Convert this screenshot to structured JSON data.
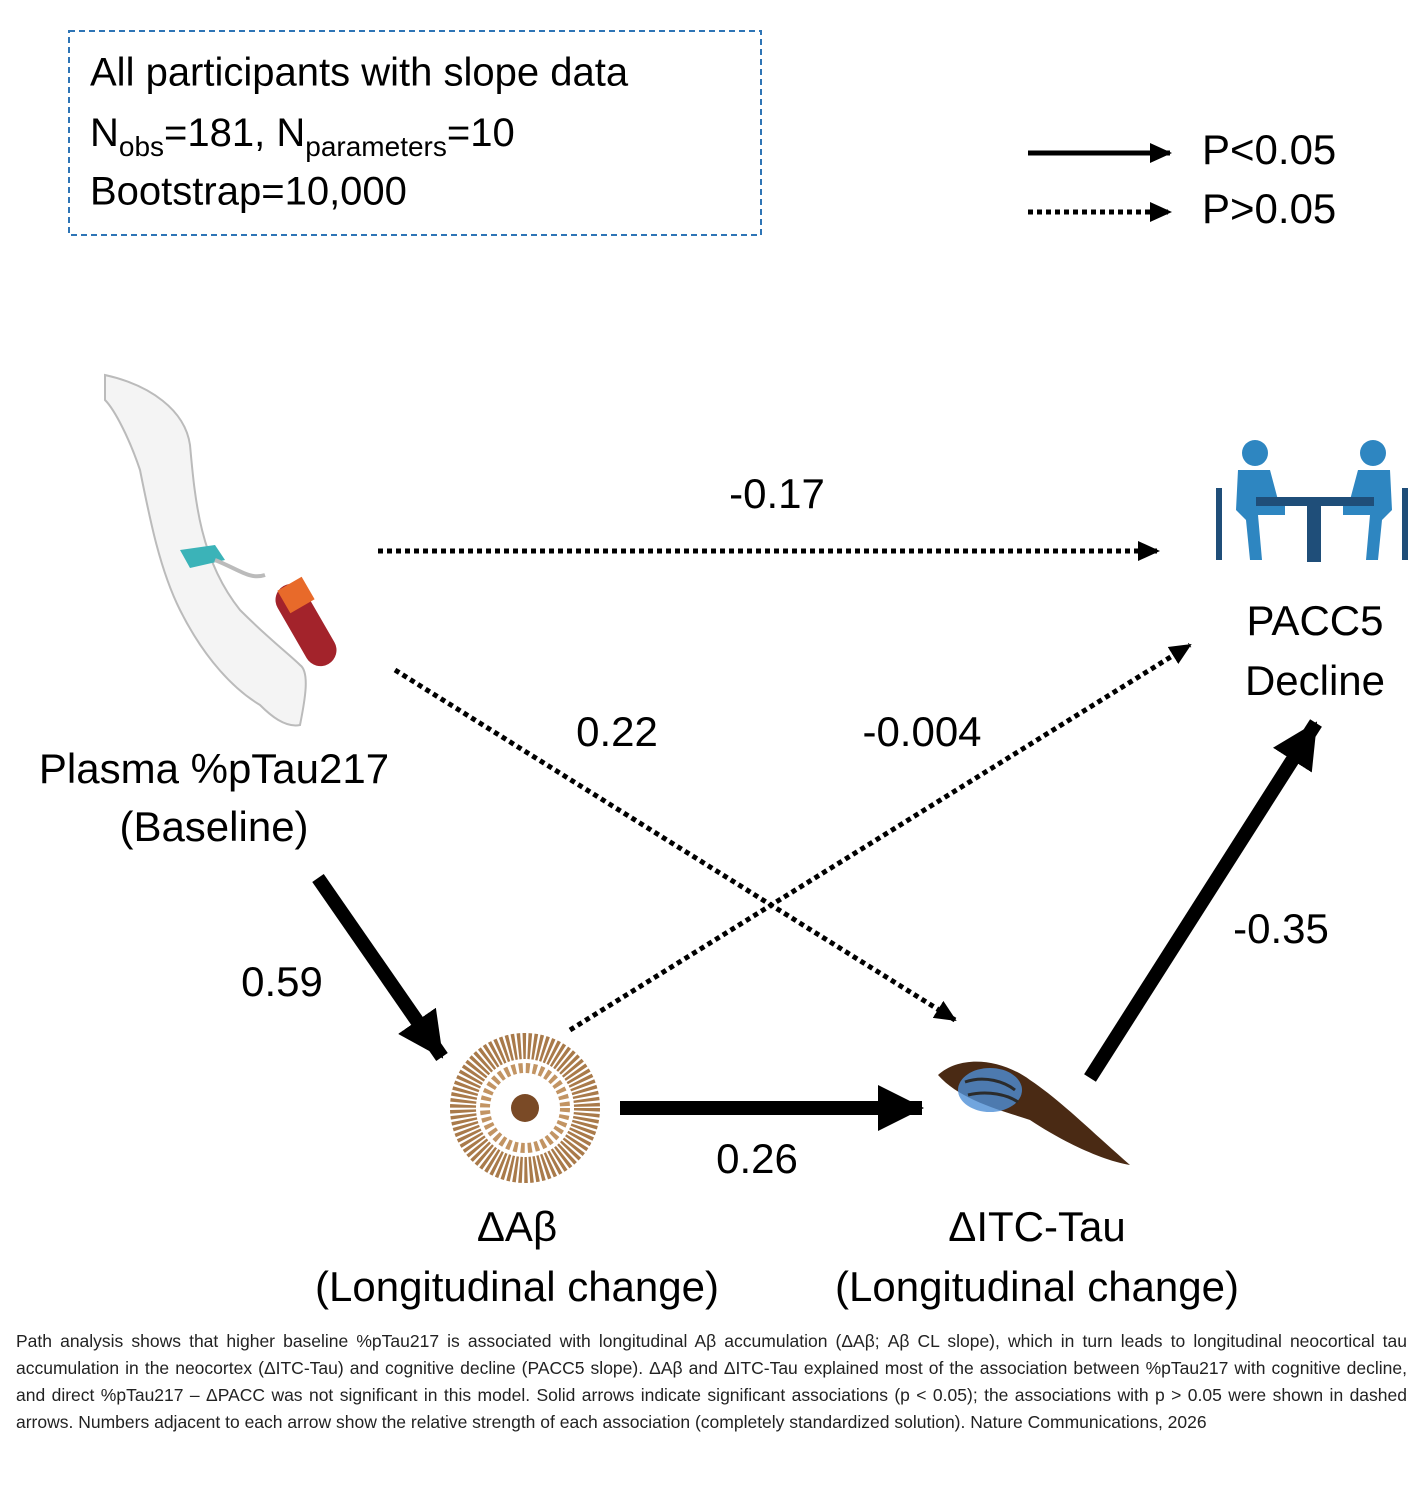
{
  "info_box": {
    "title": "All participants with slope data",
    "line2": [
      "N",
      "obs",
      "=181, N",
      "parameters",
      "=10"
    ],
    "line3": "Bootstrap=10,000"
  },
  "legend": {
    "solid": "P<0.05",
    "dotted": "P>0.05"
  },
  "nodes": {
    "plasma": [
      "Plasma %pTau217",
      "(Baseline)"
    ],
    "pacc5": [
      "PACC5",
      "Decline"
    ],
    "abeta": [
      "ΔAβ",
      "(Longitudinal change)"
    ],
    "tau": [
      "ΔITC-Tau",
      "(Longitudinal change)"
    ]
  },
  "edges": [
    {
      "from": "plasma",
      "to": "pacc5",
      "style": "dotted",
      "label": "-0.17"
    },
    {
      "from": "plasma",
      "to": "tau",
      "style": "dotted",
      "label": "0.22"
    },
    {
      "from": "abeta",
      "to": "pacc5",
      "style": "dotted",
      "label": "-0.004"
    },
    {
      "from": "plasma",
      "to": "abeta",
      "style": "solid",
      "label": "0.59"
    },
    {
      "from": "abeta",
      "to": "tau",
      "style": "solid",
      "label": "0.26"
    },
    {
      "from": "tau",
      "to": "pacc5",
      "style": "solid",
      "label": "-0.35"
    }
  ],
  "caption": "Path analysis shows that higher baseline %pTau217 is associated with longitudinal Aβ accumulation (ΔAβ; Aβ CL slope), which in turn leads to longitudinal neocortical tau accumulation in the neocortex (ΔITC-Tau) and cognitive decline (PACC5 slope). ΔAβ and ΔITC-Tau explained most of the association between %pTau217 with cognitive decline, and direct %pTau217 – ΔPACC was not significant in this model. Solid arrows indicate significant associations (p < 0.05); the associations with p > 0.05 were shown in dashed arrows. Numbers adjacent to each arrow show the relative strength of each association (completely standardized solution). Nature Communications, 2026"
}
